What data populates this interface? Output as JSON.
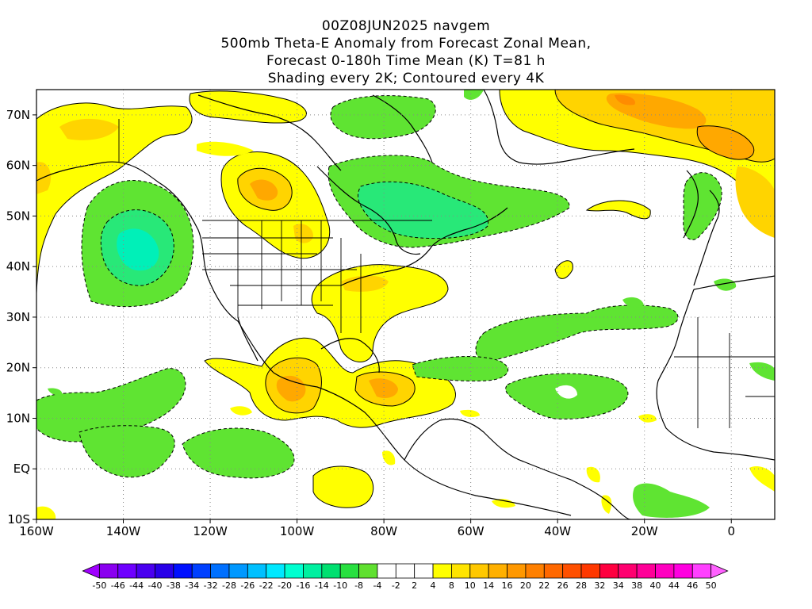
{
  "title": {
    "line1": "00Z08JUN2025 navgem",
    "line2": "500mb Theta-E Anomaly from Forecast Zonal Mean,",
    "line3": "Forecast 0-180h Time Mean (K) T=81 h",
    "line4": "Shading every 2K; Contoured every 4K"
  },
  "axes": {
    "lon_labels": [
      "160W",
      "140W",
      "120W",
      "100W",
      "80W",
      "60W",
      "40W",
      "20W",
      "0"
    ],
    "lat_labels": [
      "70N",
      "60N",
      "50N",
      "40N",
      "30N",
      "20N",
      "10N",
      "EQ",
      "10S"
    ]
  },
  "colorbar": {
    "labels": [
      "-50",
      "-46",
      "-44",
      "-40",
      "-38",
      "-34",
      "-32",
      "-28",
      "-26",
      "-22",
      "-20",
      "-16",
      "-14",
      "-10",
      "-8",
      "-4",
      "-2",
      "2",
      "4",
      "8",
      "10",
      "14",
      "16",
      "20",
      "22",
      "26",
      "28",
      "32",
      "34",
      "38",
      "40",
      "44",
      "46",
      "50"
    ],
    "colors": [
      "#a000ff",
      "#8a00f0",
      "#6e00ff",
      "#4a00f0",
      "#2800e8",
      "#0010ff",
      "#0040ff",
      "#0070ff",
      "#0098ff",
      "#00c0ff",
      "#00e8ff",
      "#00ffd0",
      "#00f0a0",
      "#00e070",
      "#28e040",
      "#60e030",
      "#ffffff",
      "#ffffff",
      "#ffffff",
      "#ffff00",
      "#ffe400",
      "#ffc800",
      "#ffb000",
      "#ff9800",
      "#ff8000",
      "#ff6800",
      "#ff5000",
      "#ff3800",
      "#ff0040",
      "#ff0070",
      "#ff0098",
      "#ff00c0",
      "#ff00e0",
      "#ff40ff",
      "#ff60ff"
    ],
    "pos_colors": [
      "#ffff00",
      "#ffd400",
      "#ffa800",
      "#ff8c00"
    ],
    "neg_colors": [
      "#5fe432",
      "#28e878",
      "#00f0b8"
    ]
  }
}
